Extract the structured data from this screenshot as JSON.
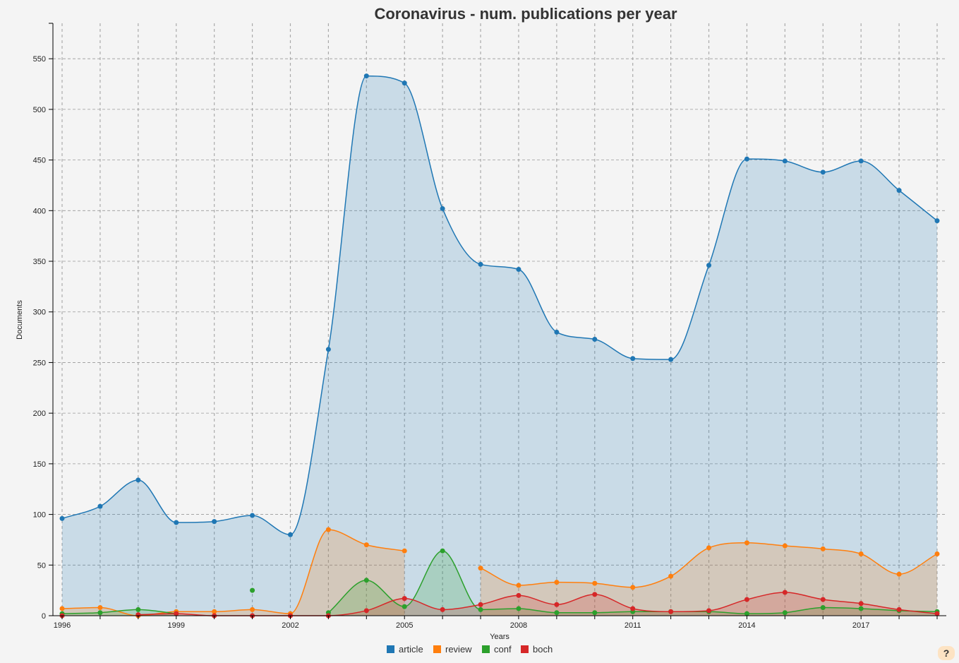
{
  "chart_data": {
    "type": "area",
    "title": "Coronavirus - num. publications per year",
    "xlabel": "Years",
    "ylabel": "Documents",
    "x": [
      1996,
      1997,
      1998,
      1999,
      2000,
      2001,
      2002,
      2003,
      2004,
      2005,
      2006,
      2007,
      2008,
      2009,
      2010,
      2011,
      2012,
      2013,
      2014,
      2015,
      2016,
      2017,
      2018,
      2019
    ],
    "xticks": [
      1996,
      1999,
      2002,
      2005,
      2008,
      2011,
      2014,
      2017
    ],
    "yticks": [
      0,
      50,
      100,
      150,
      200,
      250,
      300,
      350,
      400,
      450,
      500,
      550
    ],
    "ylim": [
      0,
      585
    ],
    "grid": true,
    "legend_position": "bottom",
    "series": [
      {
        "name": "article",
        "color": "#1f77b4",
        "values": [
          96,
          108,
          134,
          92,
          93,
          99,
          80,
          263,
          533,
          526,
          402,
          347,
          342,
          280,
          273,
          254,
          253,
          346,
          451,
          449,
          438,
          449,
          420,
          390
        ]
      },
      {
        "name": "review",
        "color": "#ff7f0e",
        "values": [
          7,
          8,
          0,
          4,
          4,
          6,
          2,
          85,
          70,
          64,
          null,
          47,
          30,
          33,
          32,
          28,
          39,
          67,
          72,
          69,
          66,
          61,
          41,
          61
        ]
      },
      {
        "name": "conf",
        "color": "#2ca02c",
        "values": [
          2,
          3,
          6,
          2,
          null,
          25,
          null,
          3,
          35,
          9,
          64,
          6,
          7,
          3,
          3,
          4,
          4,
          4,
          2,
          3,
          8,
          7,
          5,
          4
        ]
      },
      {
        "name": "boch",
        "color": "#d62728",
        "values": [
          0,
          null,
          1,
          2,
          0,
          0,
          0,
          0,
          5,
          17,
          6,
          11,
          20,
          11,
          21,
          7,
          4,
          5,
          16,
          23,
          16,
          12,
          6,
          2
        ]
      }
    ]
  },
  "help_label": "?"
}
